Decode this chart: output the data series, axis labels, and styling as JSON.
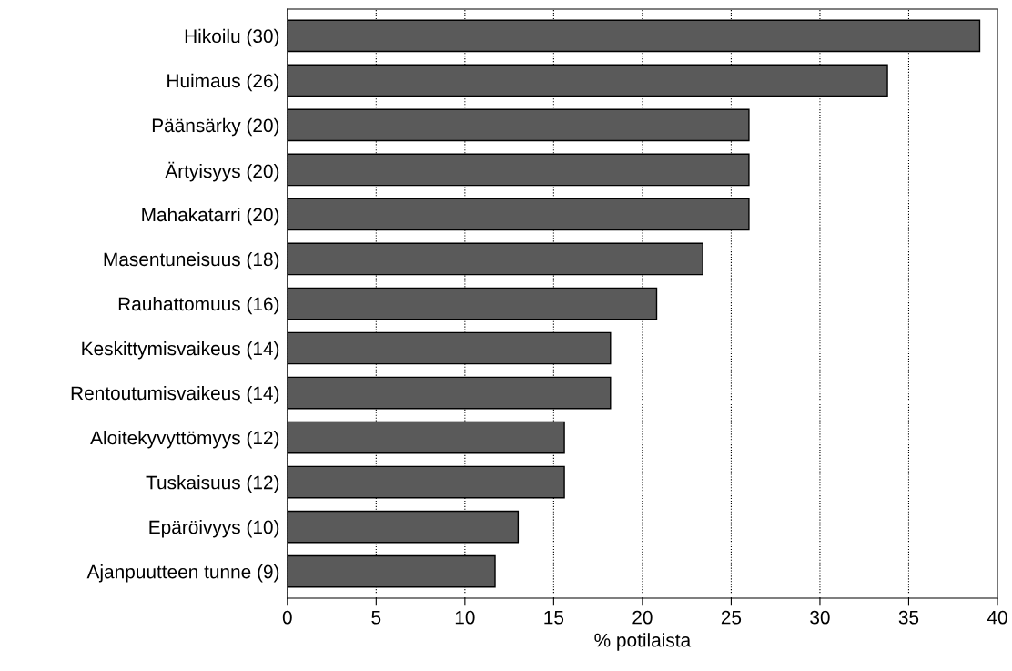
{
  "chart_data": {
    "type": "bar",
    "orientation": "horizontal",
    "xlabel": "% potilaista",
    "categories": [
      "Hikoilu (30)",
      "Huimaus (26)",
      "Päänsärky (20)",
      "Ärtyisyys (20)",
      "Mahakatarri (20)",
      "Masentuneisuus (18)",
      "Rauhattomuus (16)",
      "Keskittymisvaikeus (14)",
      "Rentoutumisvaikeus (14)",
      "Aloitekyvyttömyys (12)",
      "Tuskaisuus (12)",
      "Epäröivyys (10)",
      "Ajanpuutteen tunne (9)"
    ],
    "values": [
      39.0,
      33.8,
      26.0,
      26.0,
      26.0,
      23.4,
      20.8,
      18.2,
      18.2,
      15.6,
      15.6,
      13.0,
      11.7
    ],
    "color": "#5a5a5a",
    "xlim": [
      0,
      40
    ],
    "xticks": [
      0,
      5,
      10,
      15,
      20,
      25,
      30,
      35,
      40
    ],
    "grid": "x",
    "line_style": "dotted"
  }
}
